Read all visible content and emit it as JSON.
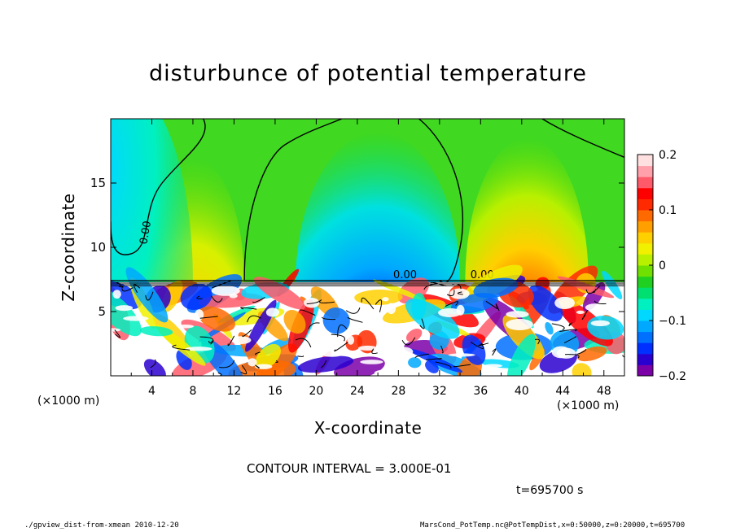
{
  "title": "disturbunce of potential temperature",
  "footer": {
    "left": "./gpview_dist-from-xmean  2010-12-20",
    "right": "MarsCond_PotTemp.nc@PotTempDist,x=0:50000,z=0:20000,t=695700"
  },
  "contour_interval": "CONTOUR INTERVAL = 3.000E-01",
  "time_label": "t=695700 s",
  "chart_data": {
    "type": "heatmap",
    "title": "disturbunce of potential temperature",
    "xlabel": "X-coordinate",
    "ylabel": "Z-coordinate",
    "x_unit_left": "(×1000 m)",
    "x_unit_right": "(×1000 m)",
    "xlim": [
      0,
      50
    ],
    "ylim": [
      0,
      20
    ],
    "xticks": [
      4,
      8,
      12,
      16,
      20,
      24,
      28,
      32,
      36,
      40,
      44,
      48
    ],
    "xtick_labels": [
      "4",
      "8",
      "12",
      "16",
      "20",
      "24",
      "28",
      "32",
      "36",
      "40",
      "44",
      "48"
    ],
    "yticks": [
      5,
      10,
      15
    ],
    "ytick_labels": [
      "5",
      "10",
      "15"
    ],
    "colorbar": {
      "range": [
        -0.2,
        0.2
      ],
      "tick_values": [
        0.2,
        0.1,
        0,
        -0.1,
        -0.2
      ],
      "tick_labels": [
        "0.2",
        "0.1",
        "0",
        "−0.1",
        "−0.2"
      ],
      "colors": [
        "#7b00a8",
        "#2a00d0",
        "#0030ff",
        "#0070ff",
        "#00a8ff",
        "#00d8ff",
        "#00f0c0",
        "#00e070",
        "#20d020",
        "#70e000",
        "#b8f000",
        "#f0f000",
        "#ffd000",
        "#ffa000",
        "#ff6a00",
        "#ff2a00",
        "#ff0000",
        "#ff5a6a",
        "#ffa0aa",
        "#ffe0e0"
      ]
    },
    "contour_labels": [
      "0.00",
      "0.00",
      "0.00"
    ],
    "upper_layer_features": [
      {
        "kind": "negative",
        "x": 26,
        "z_center": 13,
        "half_width": 8
      },
      {
        "kind": "positive",
        "x": 40.5,
        "z_center": 12.5,
        "half_width": 6
      },
      {
        "kind": "positive_weak",
        "x": 8,
        "z_center": 11,
        "half_width": 5
      },
      {
        "kind": "negative_weak",
        "x": 2,
        "z_center": 16,
        "half_width": 6
      }
    ],
    "layer_boundary_z": 7.3
  }
}
